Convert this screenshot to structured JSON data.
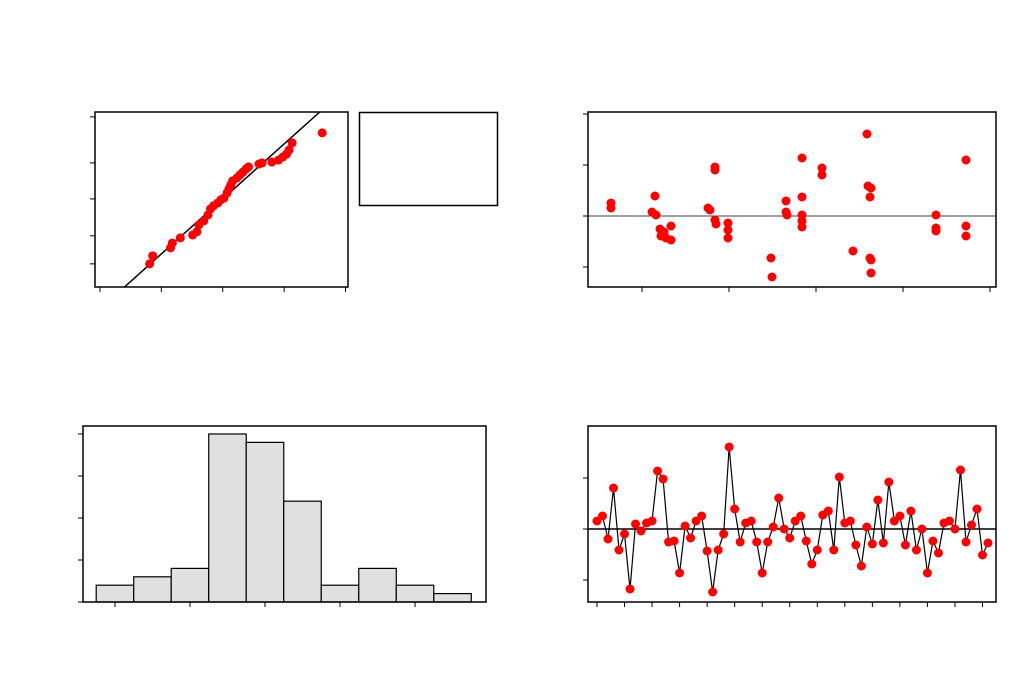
{
  "chart_data": [
    {
      "type": "scatter",
      "color": "#ff0000",
      "line_color": "#000000",
      "x": [
        -1.19,
        -1.14,
        -0.85,
        -0.82,
        -0.69,
        -0.49,
        -0.42,
        -0.39,
        -0.31,
        -0.24,
        -0.2,
        -0.15,
        -0.08,
        -0.03,
        0.02,
        0.07,
        0.1,
        0.13,
        0.16,
        0.23,
        0.28,
        0.33,
        0.38,
        0.42,
        0.59,
        0.64,
        0.8,
        0.91,
        0.98,
        1.04,
        1.08,
        1.13,
        1.62
      ],
      "y": [
        -2.27,
        -1.99,
        -1.71,
        -1.54,
        -1.36,
        -1.26,
        -1.15,
        -0.91,
        -0.77,
        -0.56,
        -0.35,
        -0.24,
        -0.14,
        -0.03,
        0.03,
        0.21,
        0.35,
        0.49,
        0.63,
        0.73,
        0.84,
        0.94,
        1.05,
        1.12,
        1.22,
        1.26,
        1.29,
        1.36,
        1.47,
        1.57,
        1.71,
        1.96,
        2.31
      ],
      "fit_line": {
        "x": [
          -1.6,
          1.58
        ],
        "y": [
          -3.08,
          3.04
        ]
      },
      "xlim": [
        -2.08,
        2.04
      ],
      "xticks": [
        -2,
        -1,
        0,
        1,
        2
      ],
      "ylim": [
        -3.08,
        3.04
      ],
      "yticks": [
        2.87,
        1.26,
        0,
        -1.29,
        -2.27
      ]
    },
    {
      "type": "scatter",
      "color": "#ff0000",
      "reference": 0,
      "x": [
        -31,
        -31,
        13,
        10,
        14,
        18,
        19,
        22,
        24,
        29,
        29,
        66,
        68,
        73,
        73,
        73,
        74,
        86,
        86,
        86,
        129,
        130,
        144,
        144,
        145,
        160,
        160,
        160,
        160,
        160,
        180,
        180,
        211,
        225,
        226,
        229,
        228,
        228,
        229,
        229,
        294,
        294,
        294,
        324,
        324,
        324
      ],
      "y": [
        13,
        8,
        20,
        4,
        1,
        -13,
        -20,
        -16,
        -22,
        -10,
        -24,
        8,
        6,
        49,
        46,
        -4,
        -8,
        -7,
        -14,
        -22,
        -42,
        -61,
        15,
        4,
        1,
        58,
        19,
        1,
        -5,
        -11,
        48,
        41,
        -35,
        82,
        30,
        28,
        19,
        -42,
        -44,
        -57,
        1,
        -12,
        -15,
        56,
        -10,
        -20
      ],
      "xlim": [
        -54,
        354
      ],
      "xticks": [
        0,
        87,
        174,
        261,
        348
      ],
      "ylim": [
        -71,
        104
      ],
      "yticks": [
        -51,
        0,
        51,
        102
      ]
    },
    {
      "type": "histogram",
      "color": "#e0e0e0",
      "bins": [
        -1.125,
        -0.875,
        -0.625,
        -0.375,
        -0.125,
        0.125,
        0.375,
        0.625,
        0.875,
        1.125,
        1.375
      ],
      "counts": [
        2,
        3,
        4,
        20,
        19,
        12,
        2,
        4,
        2,
        1
      ],
      "xlim": [
        -1.213,
        1.473
      ],
      "xticks": [
        -1,
        -0.5,
        0,
        0.5,
        1
      ],
      "ylim": [
        0,
        20.95
      ],
      "yticks": [
        0,
        5,
        10,
        15,
        20
      ]
    },
    {
      "type": "line",
      "color": "#ff0000",
      "line_color": "#000000",
      "reference": 0,
      "x": [
        1,
        2,
        3,
        4,
        5,
        6,
        7,
        8,
        9,
        10,
        11,
        12,
        13,
        14,
        15,
        16,
        17,
        18,
        19,
        20,
        21,
        22,
        23,
        24,
        25,
        26,
        27,
        28,
        29,
        30,
        31,
        32,
        33,
        34,
        35,
        36,
        37,
        38,
        39,
        40,
        41,
        42,
        43,
        44,
        45,
        46,
        47,
        48,
        49,
        50,
        51,
        52,
        53,
        54,
        55,
        56,
        57,
        58,
        59,
        60,
        61,
        62,
        63,
        64,
        65,
        66,
        67,
        68,
        69,
        70,
        71,
        72
      ],
      "y": [
        8,
        13,
        -10,
        41,
        -21,
        -5,
        -60,
        5,
        -2,
        6,
        8,
        58,
        50,
        -13,
        -12,
        -44,
        3,
        -9,
        8,
        13,
        -22,
        -63,
        -21,
        -5,
        82,
        20,
        -13,
        6,
        8,
        -13,
        -44,
        -13,
        2,
        31,
        0,
        -9,
        8,
        13,
        -12,
        -35,
        -21,
        14,
        18,
        -21,
        52,
        6,
        8,
        -16,
        -37,
        2,
        -15,
        29,
        -14,
        47,
        8,
        13,
        -16,
        18,
        -21,
        0,
        -44,
        -12,
        -24,
        6,
        8,
        0,
        59,
        -13,
        4,
        20,
        -26,
        -14
      ],
      "xlim": [
        -0.63,
        73.45
      ],
      "xticks": [
        1,
        6,
        11,
        16,
        21,
        26,
        31,
        36,
        41,
        46,
        51,
        56,
        61,
        66,
        71
      ],
      "ylim": [
        -73,
        103
      ],
      "yticks": [
        -51,
        0,
        51
      ]
    }
  ]
}
